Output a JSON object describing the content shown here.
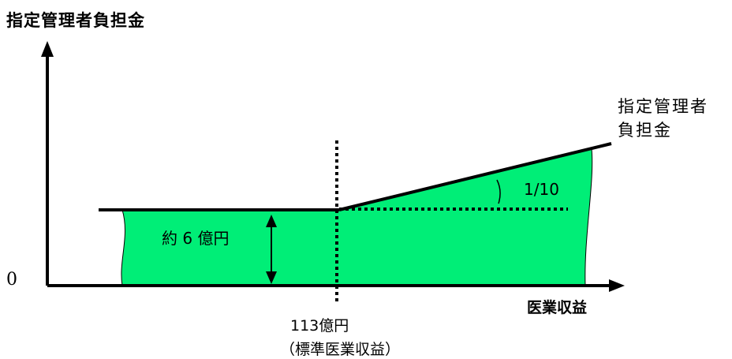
{
  "y_axis_title": "指定管理者負担金",
  "origin_label": "0",
  "x_axis_title": "医業収益",
  "vertical_marker": {
    "label": "113億円",
    "sublabel": "（標準医業収益）"
  },
  "line_label": {
    "line1": "指定管理者",
    "line2": "負担金"
  },
  "slope_label": "1/10",
  "flat_amount_label": "約 6 億円",
  "colors": {
    "fill": "#00ee77",
    "line": "#000000",
    "background": "#ffffff"
  }
}
